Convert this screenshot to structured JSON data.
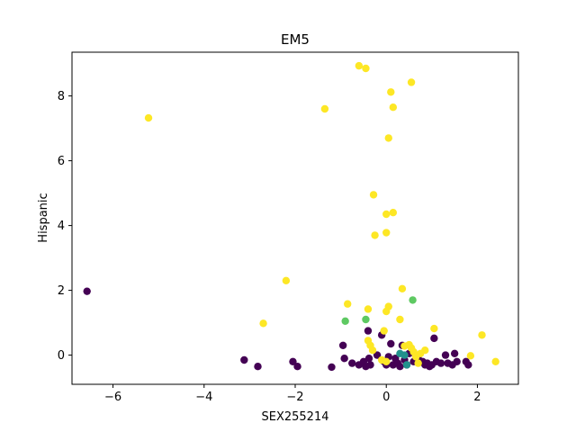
{
  "chart_data": {
    "type": "scatter",
    "title": "EM5",
    "xlabel": "SEX255214",
    "ylabel": "Hispanic",
    "xlim": [
      -6.9,
      2.9
    ],
    "ylim": [
      -0.9,
      9.35
    ],
    "xticks": [
      -6,
      -4,
      -2,
      0,
      2
    ],
    "yticks": [
      0,
      2,
      4,
      6,
      8
    ],
    "grid": false,
    "colors": {
      "purple": "#440154",
      "teal": "#21918c",
      "green": "#5ec962",
      "yellow": "#fde725"
    },
    "points": [
      {
        "x": -6.57,
        "y": 1.97,
        "c": "purple"
      },
      {
        "x": -3.12,
        "y": -0.15,
        "c": "purple"
      },
      {
        "x": -2.82,
        "y": -0.35,
        "c": "purple"
      },
      {
        "x": -2.05,
        "y": -0.2,
        "c": "purple"
      },
      {
        "x": -1.95,
        "y": -0.35,
        "c": "purple"
      },
      {
        "x": -1.2,
        "y": -0.37,
        "c": "purple"
      },
      {
        "x": -0.95,
        "y": 0.3,
        "c": "purple"
      },
      {
        "x": -0.92,
        "y": -0.1,
        "c": "purple"
      },
      {
        "x": -0.75,
        "y": -0.25,
        "c": "purple"
      },
      {
        "x": -0.6,
        "y": -0.3,
        "c": "purple"
      },
      {
        "x": -0.5,
        "y": -0.2,
        "c": "purple"
      },
      {
        "x": -0.45,
        "y": -0.35,
        "c": "purple"
      },
      {
        "x": -0.4,
        "y": 0.75,
        "c": "purple"
      },
      {
        "x": -0.38,
        "y": -0.1,
        "c": "purple"
      },
      {
        "x": -0.35,
        "y": -0.3,
        "c": "purple"
      },
      {
        "x": -0.2,
        "y": 0.0,
        "c": "purple"
      },
      {
        "x": -0.1,
        "y": 0.62,
        "c": "purple"
      },
      {
        "x": -0.05,
        "y": -0.2,
        "c": "purple"
      },
      {
        "x": 0.0,
        "y": -0.3,
        "c": "purple"
      },
      {
        "x": 0.05,
        "y": -0.05,
        "c": "purple"
      },
      {
        "x": 0.1,
        "y": 0.35,
        "c": "purple"
      },
      {
        "x": 0.15,
        "y": -0.3,
        "c": "purple"
      },
      {
        "x": 0.2,
        "y": -0.1,
        "c": "purple"
      },
      {
        "x": 0.25,
        "y": -0.25,
        "c": "purple"
      },
      {
        "x": 0.3,
        "y": -0.35,
        "c": "purple"
      },
      {
        "x": 0.35,
        "y": 0.3,
        "c": "purple"
      },
      {
        "x": 0.4,
        "y": -0.15,
        "c": "purple"
      },
      {
        "x": 0.45,
        "y": -0.3,
        "c": "purple"
      },
      {
        "x": 0.5,
        "y": 0.05,
        "c": "purple"
      },
      {
        "x": 0.6,
        "y": -0.2,
        "c": "purple"
      },
      {
        "x": 0.7,
        "y": -0.1,
        "c": "purple"
      },
      {
        "x": 0.8,
        "y": -0.2,
        "c": "purple"
      },
      {
        "x": 0.85,
        "y": -0.3,
        "c": "purple"
      },
      {
        "x": 0.9,
        "y": -0.25,
        "c": "purple"
      },
      {
        "x": 0.95,
        "y": -0.35,
        "c": "purple"
      },
      {
        "x": 1.0,
        "y": -0.3,
        "c": "purple"
      },
      {
        "x": 1.05,
        "y": 0.52,
        "c": "purple"
      },
      {
        "x": 1.1,
        "y": -0.2,
        "c": "purple"
      },
      {
        "x": 1.2,
        "y": -0.25,
        "c": "purple"
      },
      {
        "x": 1.3,
        "y": 0.0,
        "c": "purple"
      },
      {
        "x": 1.35,
        "y": -0.25,
        "c": "purple"
      },
      {
        "x": 1.45,
        "y": -0.3,
        "c": "purple"
      },
      {
        "x": 1.5,
        "y": 0.05,
        "c": "purple"
      },
      {
        "x": 1.55,
        "y": -0.2,
        "c": "purple"
      },
      {
        "x": 1.75,
        "y": -0.2,
        "c": "purple"
      },
      {
        "x": 1.8,
        "y": -0.3,
        "c": "purple"
      },
      {
        "x": 0.3,
        "y": 0.05,
        "c": "teal"
      },
      {
        "x": 0.4,
        "y": 0.0,
        "c": "teal"
      },
      {
        "x": 0.45,
        "y": -0.3,
        "c": "teal"
      },
      {
        "x": -0.9,
        "y": 1.05,
        "c": "green"
      },
      {
        "x": -0.45,
        "y": 1.1,
        "c": "green"
      },
      {
        "x": 0.58,
        "y": 1.7,
        "c": "green"
      },
      {
        "x": -5.22,
        "y": 7.32,
        "c": "yellow"
      },
      {
        "x": -0.6,
        "y": 8.93,
        "c": "yellow"
      },
      {
        "x": -0.45,
        "y": 8.85,
        "c": "yellow"
      },
      {
        "x": 0.55,
        "y": 8.42,
        "c": "yellow"
      },
      {
        "x": 0.1,
        "y": 8.12,
        "c": "yellow"
      },
      {
        "x": 0.15,
        "y": 7.65,
        "c": "yellow"
      },
      {
        "x": -1.35,
        "y": 7.6,
        "c": "yellow"
      },
      {
        "x": 0.05,
        "y": 6.7,
        "c": "yellow"
      },
      {
        "x": -0.28,
        "y": 4.95,
        "c": "yellow"
      },
      {
        "x": 0.0,
        "y": 4.35,
        "c": "yellow"
      },
      {
        "x": 0.15,
        "y": 4.4,
        "c": "yellow"
      },
      {
        "x": -0.25,
        "y": 3.7,
        "c": "yellow"
      },
      {
        "x": 0.0,
        "y": 3.78,
        "c": "yellow"
      },
      {
        "x": -2.2,
        "y": 2.3,
        "c": "yellow"
      },
      {
        "x": 0.35,
        "y": 2.05,
        "c": "yellow"
      },
      {
        "x": -0.85,
        "y": 1.58,
        "c": "yellow"
      },
      {
        "x": 0.05,
        "y": 1.5,
        "c": "yellow"
      },
      {
        "x": 0.0,
        "y": 1.35,
        "c": "yellow"
      },
      {
        "x": -0.4,
        "y": 1.42,
        "c": "yellow"
      },
      {
        "x": 0.3,
        "y": 1.1,
        "c": "yellow"
      },
      {
        "x": -2.7,
        "y": 0.98,
        "c": "yellow"
      },
      {
        "x": -0.05,
        "y": 0.75,
        "c": "yellow"
      },
      {
        "x": 1.05,
        "y": 0.82,
        "c": "yellow"
      },
      {
        "x": 2.1,
        "y": 0.62,
        "c": "yellow"
      },
      {
        "x": -0.4,
        "y": 0.45,
        "c": "yellow"
      },
      {
        "x": -0.35,
        "y": 0.3,
        "c": "yellow"
      },
      {
        "x": -0.3,
        "y": 0.15,
        "c": "yellow"
      },
      {
        "x": 0.4,
        "y": 0.28,
        "c": "yellow"
      },
      {
        "x": 0.5,
        "y": 0.32,
        "c": "yellow"
      },
      {
        "x": 0.55,
        "y": 0.22,
        "c": "yellow"
      },
      {
        "x": 0.6,
        "y": 0.1,
        "c": "yellow"
      },
      {
        "x": 0.65,
        "y": -0.05,
        "c": "yellow"
      },
      {
        "x": 0.7,
        "y": -0.25,
        "c": "yellow"
      },
      {
        "x": 0.85,
        "y": 0.15,
        "c": "yellow"
      },
      {
        "x": 0.75,
        "y": 0.05,
        "c": "yellow"
      },
      {
        "x": -0.1,
        "y": -0.15,
        "c": "yellow"
      },
      {
        "x": 0.0,
        "y": -0.2,
        "c": "yellow"
      },
      {
        "x": 1.85,
        "y": -0.02,
        "c": "yellow"
      },
      {
        "x": 2.4,
        "y": -0.2,
        "c": "yellow"
      }
    ]
  }
}
